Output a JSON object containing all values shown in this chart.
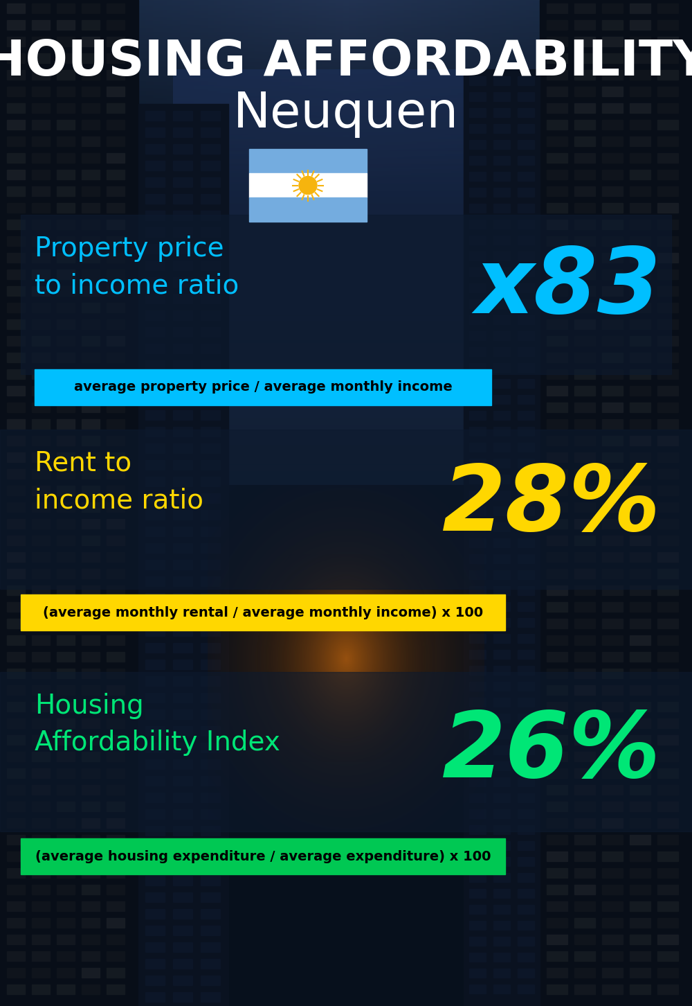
{
  "title_line1": "HOUSING AFFORDABILITY",
  "title_line2": "Neuquen",
  "section1_label": "Property price\nto income ratio",
  "section1_value": "x83",
  "section1_label_color": "#00bfff",
  "section1_value_color": "#00bfff",
  "section1_banner_text": "average property price / average monthly income",
  "section1_banner_bg": "#00bfff",
  "section1_banner_text_color": "#000000",
  "section2_label": "Rent to\nincome ratio",
  "section2_value": "28%",
  "section2_label_color": "#ffd700",
  "section2_value_color": "#ffd700",
  "section2_banner_text": "(average monthly rental / average monthly income) x 100",
  "section2_banner_bg": "#ffd700",
  "section2_banner_text_color": "#000000",
  "section3_label": "Housing\nAffordability Index",
  "section3_value": "26%",
  "section3_label_color": "#00e676",
  "section3_value_color": "#00e676",
  "section3_banner_text": "(average housing expenditure / average expenditure) x 100",
  "section3_banner_bg": "#00c853",
  "section3_banner_text_color": "#000000",
  "bg_color": "#060c14",
  "title_color": "#ffffff",
  "flag_stripe_blue": "#74acdf",
  "flag_stripe_white": "#ffffff",
  "flag_sun_color": "#f6b40e"
}
